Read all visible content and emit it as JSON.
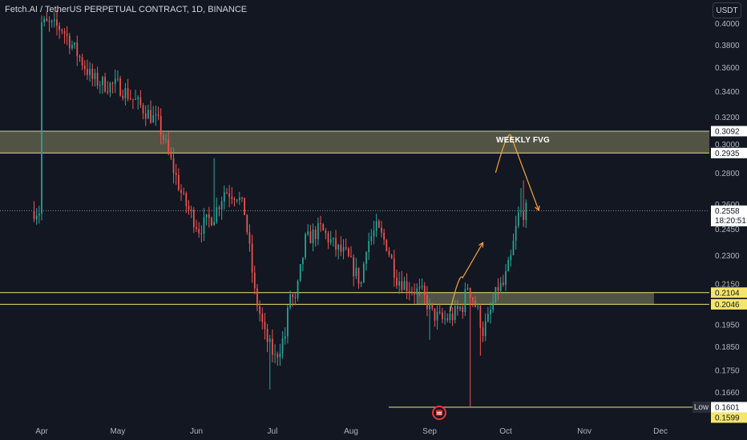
{
  "header": {
    "symbol": "Fetch.AI",
    "pair": "TetherUS PERPETUAL CONTRACT",
    "interval": "1D",
    "exchange": "BINANCE",
    "currency_button": "USDT"
  },
  "annotations": {
    "fvg_label": "WEEKLY FVG",
    "low_tag": "Low"
  },
  "colors": {
    "background": "#131722",
    "up": "#26a69a",
    "down": "#ef5350",
    "zone_upper": "#5d5f4a",
    "zone_line": "#f0e26a",
    "arrow": "#f6a53b",
    "price_label": "#ffffff",
    "low_label": "#f5e66a"
  },
  "icons": {
    "event_marker": "economic-calendar-icon"
  },
  "chart_data": {
    "type": "candlestick",
    "y_scale": "log",
    "y_ticks": [
      "0.4000",
      "0.3800",
      "0.3600",
      "0.3400",
      "0.3200",
      "0.3000",
      "0.2800",
      "0.2600",
      "0.2450",
      "0.2300",
      "0.2150",
      "0.1950",
      "0.1850",
      "0.1750",
      "0.1660"
    ],
    "x_ticks": [
      "Apr",
      "May",
      "Jun",
      "Jul",
      "Aug",
      "Sep",
      "Oct",
      "Nov",
      "Dec"
    ],
    "price_labels": [
      {
        "value": "0.3092",
        "style": "box"
      },
      {
        "value": "0.2935",
        "style": "box"
      },
      {
        "value": "0.2558",
        "sub": "18:20:51",
        "style": "current"
      },
      {
        "value": "0.2104",
        "style": "yellow"
      },
      {
        "value": "0.2046",
        "style": "yellow"
      },
      {
        "value": "0.1601",
        "style": "box"
      },
      {
        "value": "0.1599",
        "style": "yellow"
      }
    ],
    "zones": [
      {
        "name": "weekly-fvg",
        "low": 0.2935,
        "high": 0.3092
      },
      {
        "name": "support-zone",
        "low": 0.2046,
        "high": 0.2104
      }
    ],
    "low_value": 0.1601,
    "current_price": 0.2558,
    "arrow_1": [
      {
        "date": "2024-09-27",
        "price": 0.28
      },
      {
        "date": "2024-10-03",
        "price": 0.306
      },
      {
        "date": "2024-10-14",
        "price": 0.256
      }
    ],
    "arrow_2": [
      {
        "date": "2024-09-09",
        "price": 0.201
      },
      {
        "date": "2024-09-14",
        "price": 0.218
      },
      {
        "date": "2024-09-22",
        "price": 0.237
      }
    ]
  }
}
